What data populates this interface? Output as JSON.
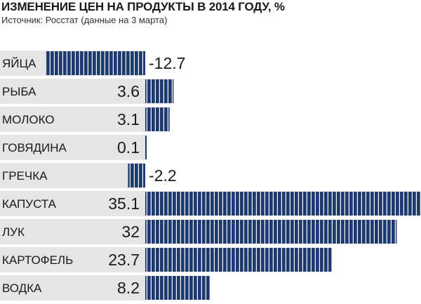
{
  "header": {
    "title": "ИЗМЕНЕНИЕ ЦЕН НА ПРОДУКТЫ В 2014 ГОДУ, %",
    "subtitle": "Источник: Росстат (данные на 3 марта)"
  },
  "colors": {
    "bar": "#1f3a73",
    "row_band": "#e5e5e5",
    "text": "#1a1a1a"
  },
  "chart_data": {
    "type": "bar",
    "orientation": "horizontal",
    "title": "ИЗМЕНЕНИЕ ЦЕН НА ПРОДУКТЫ В 2014 ГОДУ, %",
    "subtitle": "Источник: Росстат (данные на 3 марта)",
    "categories": [
      "ЯЙЦА",
      "РЫБА",
      "МОЛОКО",
      "ГОВЯДИНА",
      "ГРЕЧКА",
      "КАПУСТА",
      "ЛУК",
      "КАРТОФЕЛЬ",
      "ВОДКА"
    ],
    "values": [
      -12.7,
      3.6,
      3.1,
      0.1,
      -2.2,
      35.1,
      32,
      23.7,
      8.2
    ],
    "value_labels": [
      "-12.7",
      "3.6",
      "3.1",
      "0.1",
      "-2.2",
      "35.1",
      "32",
      "23.7",
      "8.2"
    ],
    "xlim": [
      -16,
      44
    ],
    "grid": false,
    "legend": "none"
  }
}
